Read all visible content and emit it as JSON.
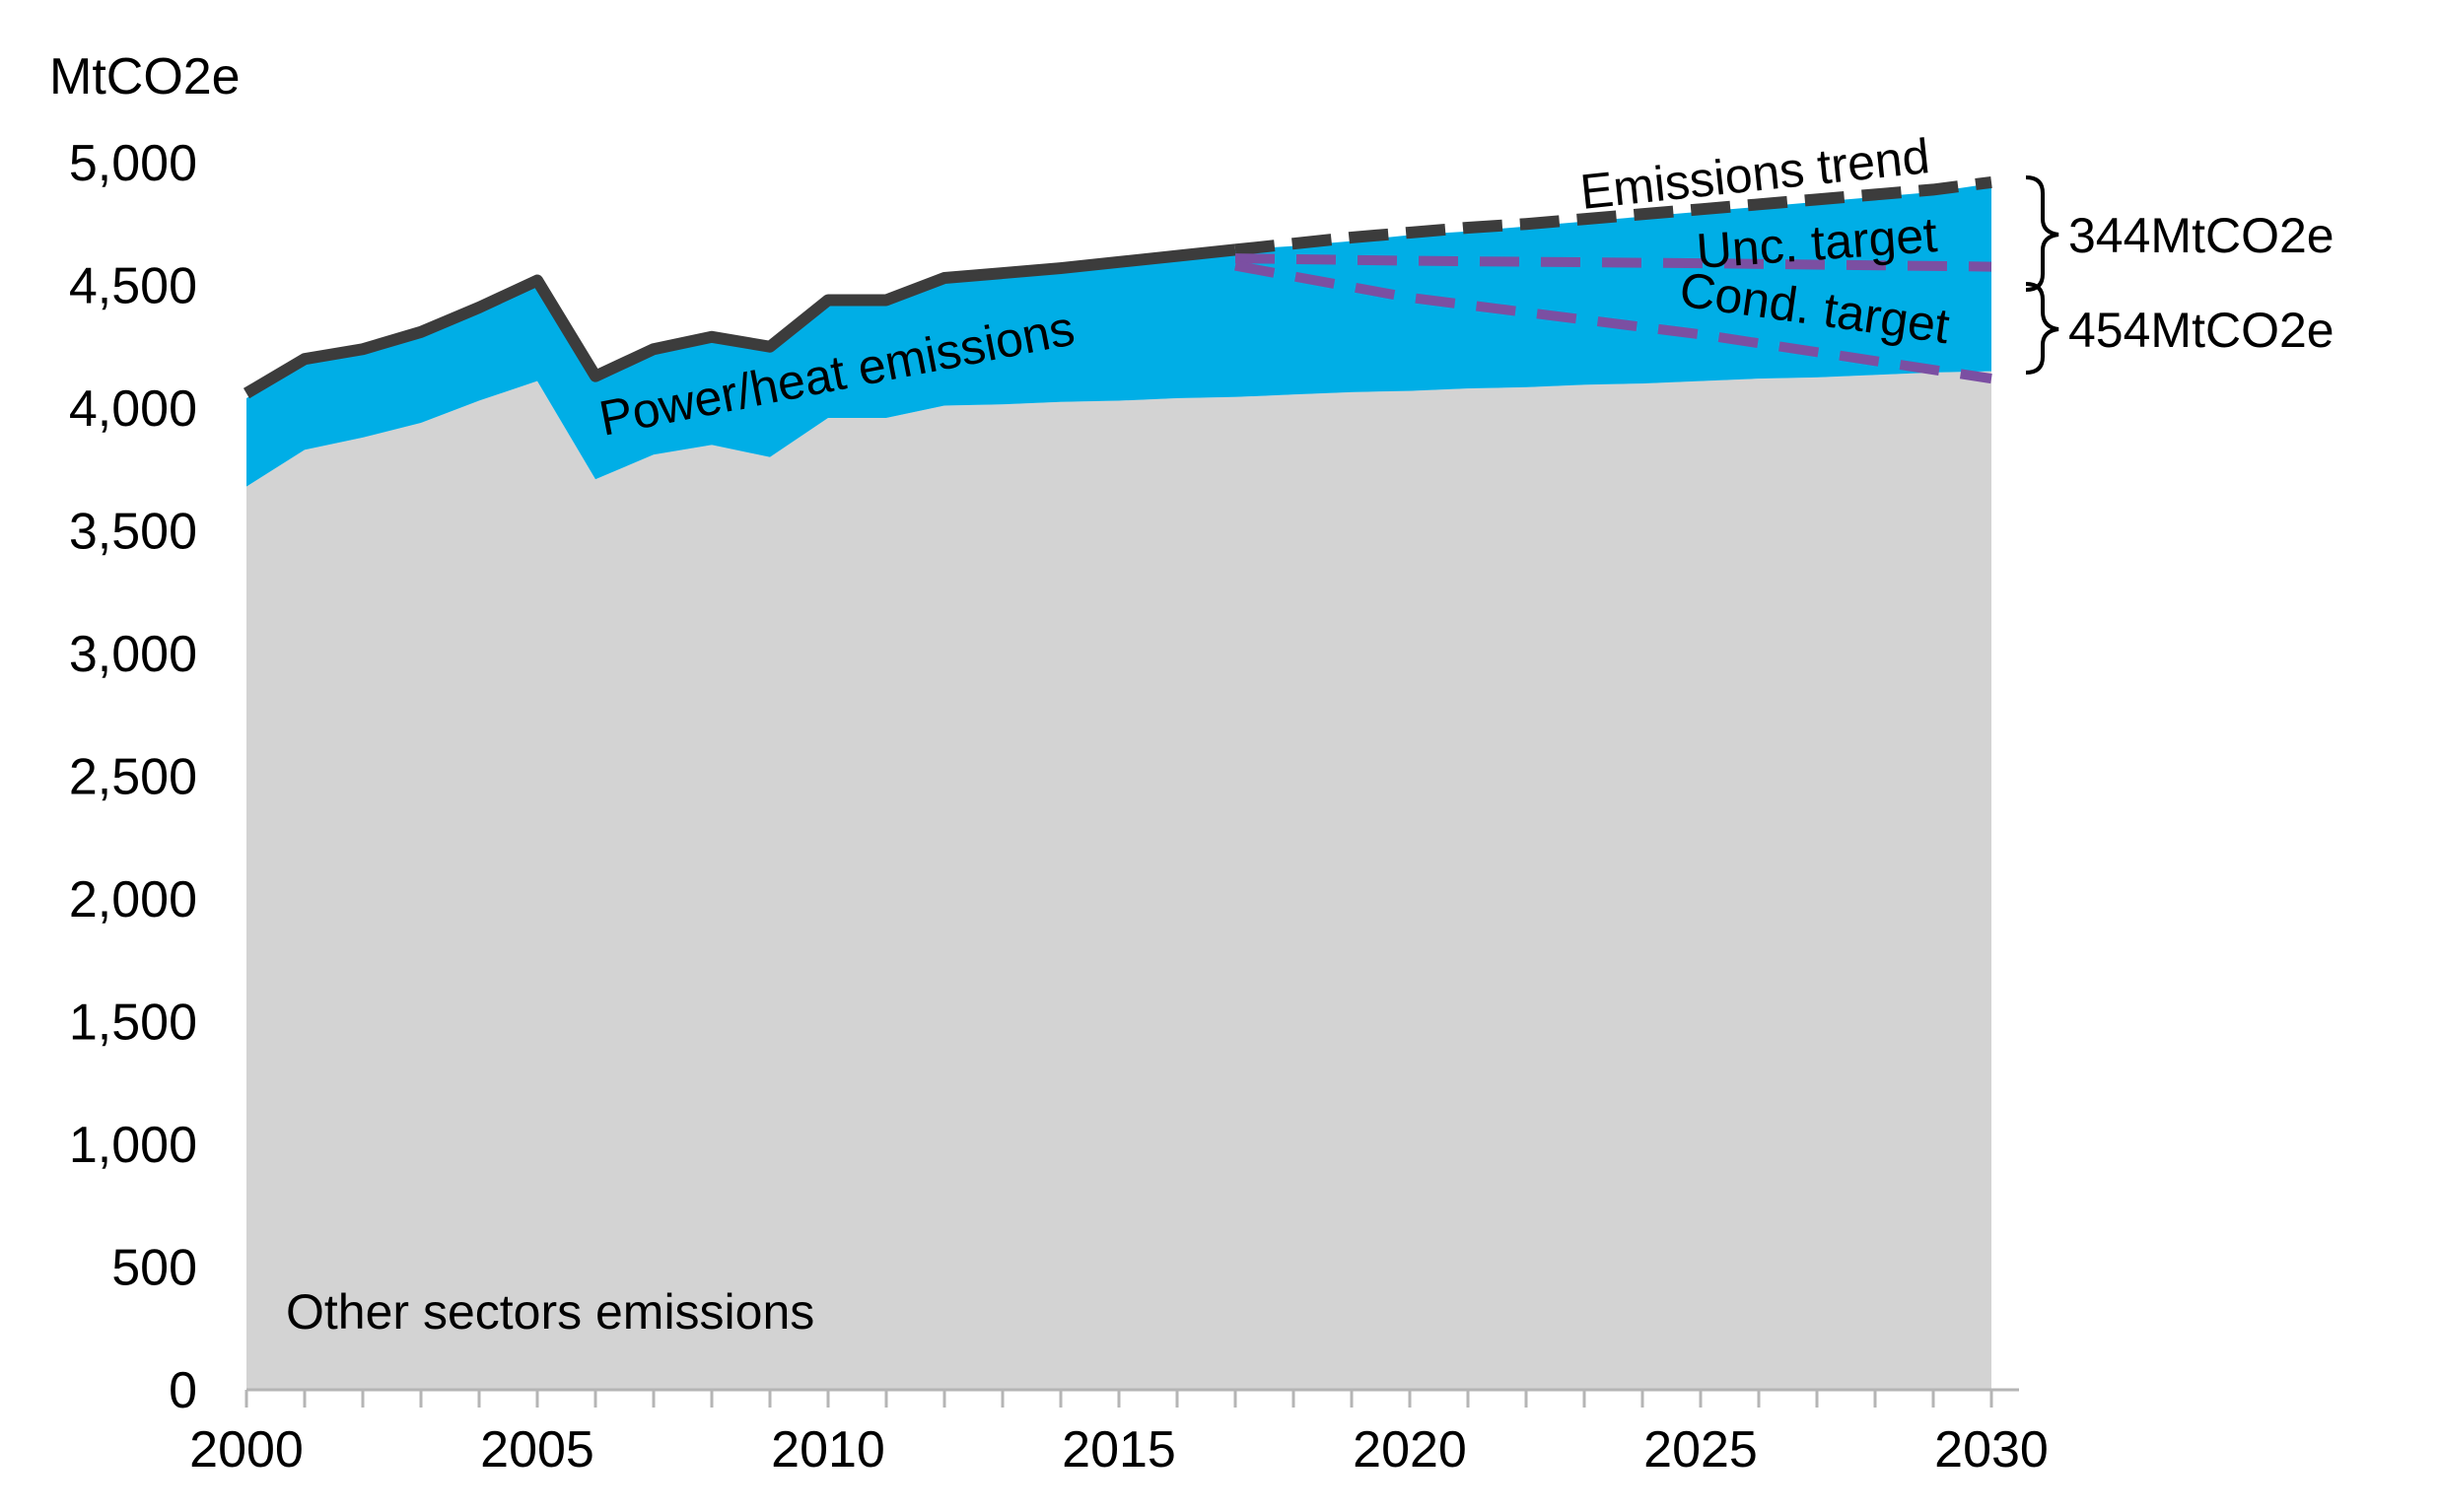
{
  "chart_data": {
    "type": "area",
    "ylabel": "MtCO2e",
    "ylim": [
      0,
      5000
    ],
    "xlim": [
      2000,
      2030
    ],
    "y_ticks": [
      "0",
      "500",
      "1,000",
      "1,500",
      "2,000",
      "2,500",
      "3,000",
      "3,500",
      "4,000",
      "4,500",
      "5,000"
    ],
    "y_tick_values": [
      0,
      500,
      1000,
      1500,
      2000,
      2500,
      3000,
      3500,
      4000,
      4500,
      5000
    ],
    "x_ticks": [
      "2000",
      "2005",
      "2010",
      "2015",
      "2020",
      "2025",
      "2030"
    ],
    "x_tick_values": [
      2000,
      2005,
      2010,
      2015,
      2020,
      2025,
      2030
    ],
    "grid": false,
    "x": [
      2000,
      2001,
      2002,
      2003,
      2004,
      2005,
      2006,
      2007,
      2008,
      2009,
      2010,
      2011,
      2012,
      2013,
      2014,
      2015,
      2016,
      2017,
      2018,
      2019,
      2020,
      2021,
      2022,
      2023,
      2024,
      2025,
      2026,
      2027,
      2028,
      2029,
      2030
    ],
    "series": [
      {
        "name": "Other sectors emissions",
        "values": [
          3680,
          3830,
          3880,
          3940,
          4030,
          4110,
          3710,
          3810,
          3850,
          3800,
          3960,
          3960,
          4010,
          4015,
          4025,
          4030,
          4040,
          4045,
          4055,
          4065,
          4070,
          4080,
          4085,
          4095,
          4100,
          4110,
          4120,
          4125,
          4135,
          4145,
          4150
        ],
        "color": "#d3d3d3"
      },
      {
        "name": "Power/heat emissions",
        "values": [
          360,
          360,
          370,
          370,
          380,
          400,
          410,
          420,
          430,
          440,
          460,
          470,
          510,
          530,
          545,
          560,
          580,
          600,
          605,
          615,
          635,
          640,
          655,
          665,
          680,
          690,
          700,
          715,
          725,
          735,
          765
        ],
        "color": "#00aee6"
      }
    ],
    "lines": [
      {
        "name": "Emissions trend",
        "style": "solid-then-dashed",
        "color": "#3c3c3c",
        "dashed_from": 2017,
        "x": [
          2000,
          2001,
          2002,
          2003,
          2004,
          2005,
          2006,
          2007,
          2008,
          2009,
          2010,
          2011,
          2012,
          2013,
          2014,
          2015,
          2016,
          2017,
          2018,
          2019,
          2020,
          2021,
          2022,
          2023,
          2024,
          2025,
          2026,
          2027,
          2028,
          2029,
          2030
        ],
        "values": [
          4060,
          4200,
          4240,
          4310,
          4410,
          4520,
          4130,
          4240,
          4290,
          4250,
          4440,
          4440,
          4530,
          4550,
          4570,
          4595,
          4620,
          4645,
          4670,
          4695,
          4715,
          4735,
          4750,
          4770,
          4790,
          4810,
          4830,
          4850,
          4870,
          4890,
          4920
        ]
      },
      {
        "name": "Unc. target",
        "style": "dashed",
        "color": "#7b4fa2",
        "x": [
          2017,
          2020,
          2025,
          2030
        ],
        "values": [
          4610,
          4600,
          4590,
          4576
        ]
      },
      {
        "name": "Cond. target",
        "style": "dashed",
        "color": "#7b4fa2",
        "x": [
          2017,
          2020,
          2025,
          2030
        ],
        "values": [
          4580,
          4450,
          4300,
          4120
        ]
      }
    ],
    "annotations": {
      "emissions_trend": "Emissions trend",
      "unc_target": "Unc. target",
      "cond_target": "Cond. target",
      "power_heat": "Power/heat emissions",
      "other_sectors": "Other sectors emissions",
      "gap_unconditional": "344MtCO2e",
      "gap_conditional": "454MtCO2e"
    }
  }
}
